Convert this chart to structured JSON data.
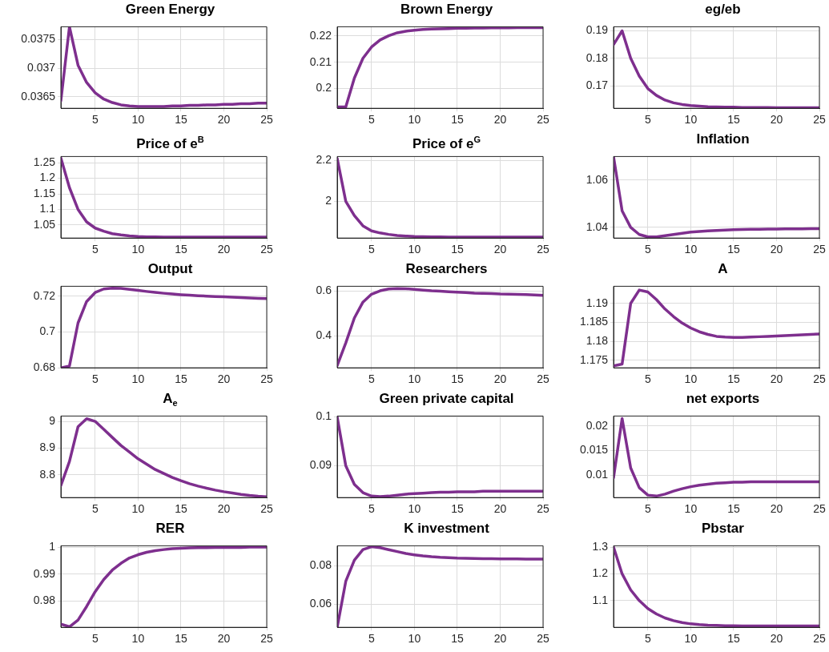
{
  "chart_data": [
    {
      "type": "line",
      "title": "Green Energy",
      "x": [
        1,
        2,
        3,
        4,
        5,
        6,
        7,
        8,
        9,
        10,
        11,
        12,
        13,
        14,
        15,
        16,
        17,
        18,
        19,
        20,
        21,
        22,
        23,
        24,
        25
      ],
      "series": [
        {
          "color": "#7e2f8e",
          "values": [
            0.03643,
            0.03772,
            0.03705,
            0.03675,
            0.03657,
            0.03646,
            0.0364,
            0.03636,
            0.03634,
            0.03633,
            0.03633,
            0.03633,
            0.03633,
            0.03634,
            0.03634,
            0.03635,
            0.03635,
            0.03636,
            0.03636,
            0.03637,
            0.03637,
            0.03638,
            0.03638,
            0.03639,
            0.03639
          ]
        }
      ],
      "xlim": [
        1,
        25
      ],
      "xticks": [
        5,
        10,
        15,
        20,
        25
      ],
      "ylim": [
        0.0363,
        0.03772
      ],
      "yticks": [
        0.0365,
        0.037,
        0.0375
      ],
      "grid": true,
      "legend": false,
      "marker": "none",
      "line_style": "solid"
    },
    {
      "type": "line",
      "title": "Brown Energy",
      "x": [
        1,
        2,
        3,
        4,
        5,
        6,
        7,
        8,
        9,
        10,
        11,
        12,
        13,
        14,
        15,
        16,
        17,
        18,
        19,
        20,
        21,
        22,
        23,
        24,
        25
      ],
      "series": [
        {
          "color": "#7e2f8e",
          "values": [
            0.193,
            0.193,
            0.204,
            0.2115,
            0.2158,
            0.2185,
            0.2201,
            0.2212,
            0.2218,
            0.2222,
            0.2225,
            0.2226,
            0.2227,
            0.2228,
            0.2229,
            0.2229,
            0.223,
            0.223,
            0.2231,
            0.2231,
            0.2231,
            0.2232,
            0.2232,
            0.2232,
            0.2232
          ]
        }
      ],
      "xlim": [
        1,
        25
      ],
      "xticks": [
        5,
        10,
        15,
        20,
        25
      ],
      "ylim": [
        0.1925,
        0.2235
      ],
      "yticks": [
        0.2,
        0.21,
        0.22
      ],
      "grid": true,
      "legend": false,
      "marker": "none",
      "line_style": "solid"
    },
    {
      "type": "line",
      "title": "eg/eb",
      "x": [
        1,
        2,
        3,
        4,
        5,
        6,
        7,
        8,
        9,
        10,
        11,
        12,
        13,
        14,
        15,
        16,
        17,
        18,
        19,
        20,
        21,
        22,
        23,
        24,
        25
      ],
      "series": [
        {
          "color": "#7e2f8e",
          "values": [
            0.185,
            0.19,
            0.18,
            0.1735,
            0.169,
            0.1665,
            0.1648,
            0.1638,
            0.1632,
            0.1628,
            0.1626,
            0.1624,
            0.1623,
            0.1622,
            0.1622,
            0.1621,
            0.1621,
            0.1621,
            0.1621,
            0.162,
            0.162,
            0.162,
            0.162,
            0.162,
            0.162
          ]
        }
      ],
      "xlim": [
        1,
        25
      ],
      "xticks": [
        5,
        10,
        15,
        20,
        25
      ],
      "ylim": [
        0.1618,
        0.1915
      ],
      "yticks": [
        0.17,
        0.18,
        0.19
      ],
      "grid": true,
      "legend": false,
      "marker": "none",
      "line_style": "solid"
    },
    {
      "type": "line",
      "title": "Price of e$^{B}$",
      "x": [
        1,
        2,
        3,
        4,
        5,
        6,
        7,
        8,
        9,
        10,
        11,
        12,
        13,
        14,
        15,
        16,
        17,
        18,
        19,
        20,
        21,
        22,
        23,
        24,
        25
      ],
      "series": [
        {
          "color": "#7e2f8e",
          "values": [
            1.265,
            1.17,
            1.1,
            1.06,
            1.04,
            1.03,
            1.022,
            1.018,
            1.015,
            1.013,
            1.012,
            1.012,
            1.011,
            1.011,
            1.011,
            1.011,
            1.011,
            1.011,
            1.011,
            1.011,
            1.011,
            1.011,
            1.011,
            1.011,
            1.011
          ]
        }
      ],
      "xlim": [
        1,
        25
      ],
      "xticks": [
        5,
        10,
        15,
        20,
        25
      ],
      "ylim": [
        1.008,
        1.27
      ],
      "yticks": [
        1.05,
        1.1,
        1.15,
        1.2,
        1.25
      ],
      "grid": true,
      "legend": false,
      "marker": "none",
      "line_style": "solid"
    },
    {
      "type": "line",
      "title": "Price of e$^{G}$",
      "x": [
        1,
        2,
        3,
        4,
        5,
        6,
        7,
        8,
        9,
        10,
        11,
        12,
        13,
        14,
        15,
        16,
        17,
        18,
        19,
        20,
        21,
        22,
        23,
        24,
        25
      ],
      "series": [
        {
          "color": "#7e2f8e",
          "values": [
            2.21,
            2.0,
            1.93,
            1.88,
            1.855,
            1.845,
            1.838,
            1.833,
            1.83,
            1.828,
            1.827,
            1.826,
            1.826,
            1.825,
            1.825,
            1.825,
            1.825,
            1.825,
            1.825,
            1.825,
            1.825,
            1.825,
            1.825,
            1.825,
            1.825
          ]
        }
      ],
      "xlim": [
        1,
        25
      ],
      "xticks": [
        5,
        10,
        15,
        20,
        25
      ],
      "ylim": [
        1.82,
        2.22
      ],
      "yticks": [
        2,
        2.2
      ],
      "grid": true,
      "legend": false,
      "marker": "none",
      "line_style": "solid"
    },
    {
      "type": "line",
      "title": "Inflation",
      "x": [
        1,
        2,
        3,
        4,
        5,
        6,
        7,
        8,
        9,
        10,
        11,
        12,
        13,
        14,
        15,
        16,
        17,
        18,
        19,
        20,
        21,
        22,
        23,
        24,
        25
      ],
      "series": [
        {
          "color": "#7e2f8e",
          "values": [
            1.07,
            1.047,
            1.04,
            1.037,
            1.036,
            1.036,
            1.0365,
            1.037,
            1.0375,
            1.038,
            1.0383,
            1.0385,
            1.0387,
            1.0389,
            1.039,
            1.0391,
            1.0392,
            1.0392,
            1.0393,
            1.0393,
            1.0394,
            1.0394,
            1.0394,
            1.0395,
            1.0395
          ]
        }
      ],
      "xlim": [
        1,
        25
      ],
      "xticks": [
        5,
        10,
        15,
        20,
        25
      ],
      "ylim": [
        1.0355,
        1.07
      ],
      "yticks": [
        1.04,
        1.06
      ],
      "grid": true,
      "legend": false,
      "marker": "none",
      "line_style": "solid"
    },
    {
      "type": "line",
      "title": "Output",
      "x": [
        1,
        2,
        3,
        4,
        5,
        6,
        7,
        8,
        9,
        10,
        11,
        12,
        13,
        14,
        15,
        16,
        17,
        18,
        19,
        20,
        21,
        22,
        23,
        24,
        25
      ],
      "series": [
        {
          "color": "#7e2f8e",
          "values": [
            0.68,
            0.681,
            0.705,
            0.717,
            0.722,
            0.724,
            0.7245,
            0.7243,
            0.7238,
            0.7232,
            0.7226,
            0.7221,
            0.7216,
            0.7212,
            0.7208,
            0.7205,
            0.7202,
            0.72,
            0.7198,
            0.7196,
            0.7194,
            0.7192,
            0.719,
            0.7188,
            0.7186
          ]
        }
      ],
      "xlim": [
        1,
        25
      ],
      "xticks": [
        5,
        10,
        15,
        20,
        25
      ],
      "ylim": [
        0.68,
        0.7255
      ],
      "yticks": [
        0.68,
        0.7,
        0.72
      ],
      "grid": true,
      "legend": false,
      "marker": "none",
      "line_style": "solid"
    },
    {
      "type": "line",
      "title": "Researchers",
      "x": [
        1,
        2,
        3,
        4,
        5,
        6,
        7,
        8,
        9,
        10,
        11,
        12,
        13,
        14,
        15,
        16,
        17,
        18,
        19,
        20,
        21,
        22,
        23,
        24,
        25
      ],
      "series": [
        {
          "color": "#7e2f8e",
          "values": [
            0.27,
            0.37,
            0.48,
            0.55,
            0.585,
            0.6,
            0.608,
            0.61,
            0.609,
            0.606,
            0.603,
            0.6,
            0.598,
            0.596,
            0.594,
            0.592,
            0.59,
            0.589,
            0.588,
            0.586,
            0.585,
            0.584,
            0.583,
            0.582,
            0.58
          ]
        }
      ],
      "xlim": [
        1,
        25
      ],
      "xticks": [
        5,
        10,
        15,
        20,
        25
      ],
      "ylim": [
        0.26,
        0.62
      ],
      "yticks": [
        0.4,
        0.6
      ],
      "grid": true,
      "legend": false,
      "marker": "none",
      "line_style": "solid"
    },
    {
      "type": "line",
      "title": "A",
      "x": [
        1,
        2,
        3,
        4,
        5,
        6,
        7,
        8,
        9,
        10,
        11,
        12,
        13,
        14,
        15,
        16,
        17,
        18,
        19,
        20,
        21,
        22,
        23,
        24,
        25
      ],
      "series": [
        {
          "color": "#7e2f8e",
          "values": [
            1.1735,
            1.174,
            1.19,
            1.1935,
            1.193,
            1.191,
            1.1885,
            1.1865,
            1.1848,
            1.1835,
            1.1825,
            1.1818,
            1.1813,
            1.1811,
            1.181,
            1.181,
            1.1811,
            1.1812,
            1.1813,
            1.1814,
            1.1815,
            1.1816,
            1.1817,
            1.1818,
            1.1819
          ]
        }
      ],
      "xlim": [
        1,
        25
      ],
      "xticks": [
        5,
        10,
        15,
        20,
        25
      ],
      "ylim": [
        1.173,
        1.1945
      ],
      "yticks": [
        1.175,
        1.18,
        1.185,
        1.19
      ],
      "grid": true,
      "legend": false,
      "marker": "none",
      "line_style": "solid"
    },
    {
      "type": "line",
      "title": "A$_{e}$",
      "x": [
        1,
        2,
        3,
        4,
        5,
        6,
        7,
        8,
        9,
        10,
        11,
        12,
        13,
        14,
        15,
        16,
        17,
        18,
        19,
        20,
        21,
        22,
        23,
        24,
        25
      ],
      "series": [
        {
          "color": "#7e2f8e",
          "values": [
            8.76,
            8.85,
            8.98,
            9.01,
            9.0,
            8.97,
            8.94,
            8.91,
            8.885,
            8.86,
            8.84,
            8.82,
            8.805,
            8.79,
            8.778,
            8.767,
            8.758,
            8.75,
            8.743,
            8.737,
            8.732,
            8.727,
            8.723,
            8.72,
            8.718
          ]
        }
      ],
      "xlim": [
        1,
        25
      ],
      "xticks": [
        5,
        10,
        15,
        20,
        25
      ],
      "ylim": [
        8.715,
        9.02
      ],
      "yticks": [
        8.8,
        8.9,
        9
      ],
      "grid": true,
      "legend": false,
      "marker": "none",
      "line_style": "solid"
    },
    {
      "type": "line",
      "title": "Green private capital",
      "x": [
        1,
        2,
        3,
        4,
        5,
        6,
        7,
        8,
        9,
        10,
        11,
        12,
        13,
        14,
        15,
        16,
        17,
        18,
        19,
        20,
        21,
        22,
        23,
        24,
        25
      ],
      "series": [
        {
          "color": "#7e2f8e",
          "values": [
            0.1,
            0.09,
            0.0862,
            0.0845,
            0.0838,
            0.0837,
            0.0838,
            0.084,
            0.0842,
            0.0843,
            0.0844,
            0.0845,
            0.0846,
            0.0846,
            0.0847,
            0.0847,
            0.0847,
            0.0848,
            0.0848,
            0.0848,
            0.0848,
            0.0848,
            0.0848,
            0.0848,
            0.0848
          ]
        }
      ],
      "xlim": [
        1,
        25
      ],
      "xticks": [
        5,
        10,
        15,
        20,
        25
      ],
      "ylim": [
        0.0835,
        0.1002
      ],
      "yticks": [
        0.09,
        0.1
      ],
      "grid": true,
      "legend": false,
      "marker": "none",
      "line_style": "solid"
    },
    {
      "type": "line",
      "title": "net exports",
      "x": [
        1,
        2,
        3,
        4,
        5,
        6,
        7,
        8,
        9,
        10,
        11,
        12,
        13,
        14,
        15,
        16,
        17,
        18,
        19,
        20,
        21,
        22,
        23,
        24,
        25
      ],
      "series": [
        {
          "color": "#7e2f8e",
          "values": [
            0.0095,
            0.0215,
            0.0115,
            0.0075,
            0.006,
            0.0058,
            0.0062,
            0.0068,
            0.0073,
            0.0077,
            0.008,
            0.0082,
            0.0084,
            0.0085,
            0.0086,
            0.0086,
            0.0087,
            0.0087,
            0.0087,
            0.0087,
            0.0087,
            0.0087,
            0.0087,
            0.0087,
            0.0087
          ]
        }
      ],
      "xlim": [
        1,
        25
      ],
      "xticks": [
        5,
        10,
        15,
        20,
        25
      ],
      "ylim": [
        0.0055,
        0.022
      ],
      "yticks": [
        0.01,
        0.015,
        0.02
      ],
      "grid": true,
      "legend": false,
      "marker": "none",
      "line_style": "solid"
    },
    {
      "type": "line",
      "title": "RER",
      "x": [
        1,
        2,
        3,
        4,
        5,
        6,
        7,
        8,
        9,
        10,
        11,
        12,
        13,
        14,
        15,
        16,
        17,
        18,
        19,
        20,
        21,
        22,
        23,
        24,
        25
      ],
      "series": [
        {
          "color": "#7e2f8e",
          "values": [
            0.9715,
            0.9705,
            0.973,
            0.978,
            0.9835,
            0.988,
            0.9915,
            0.994,
            0.996,
            0.9972,
            0.9981,
            0.9987,
            0.9991,
            0.9994,
            0.9996,
            0.9997,
            0.9998,
            0.9998,
            0.9999,
            0.9999,
            0.9999,
            0.9999,
            1.0,
            1.0,
            1.0
          ]
        }
      ],
      "xlim": [
        1,
        25
      ],
      "xticks": [
        5,
        10,
        15,
        20,
        25
      ],
      "ylim": [
        0.9703,
        1.0005
      ],
      "yticks": [
        0.98,
        0.99,
        1
      ],
      "grid": true,
      "legend": false,
      "marker": "none",
      "line_style": "solid"
    },
    {
      "type": "line",
      "title": "K investment",
      "x": [
        1,
        2,
        3,
        4,
        5,
        6,
        7,
        8,
        9,
        10,
        11,
        12,
        13,
        14,
        15,
        16,
        17,
        18,
        19,
        20,
        21,
        22,
        23,
        24,
        25
      ],
      "series": [
        {
          "color": "#7e2f8e",
          "values": [
            0.048,
            0.072,
            0.083,
            0.0885,
            0.09,
            0.0895,
            0.0885,
            0.0875,
            0.0865,
            0.0858,
            0.0852,
            0.0848,
            0.0845,
            0.0843,
            0.0841,
            0.084,
            0.0839,
            0.0838,
            0.0838,
            0.0837,
            0.0837,
            0.0837,
            0.0836,
            0.0836,
            0.0836
          ]
        }
      ],
      "xlim": [
        1,
        25
      ],
      "xticks": [
        5,
        10,
        15,
        20,
        25
      ],
      "ylim": [
        0.048,
        0.0905
      ],
      "yticks": [
        0.06,
        0.08
      ],
      "grid": true,
      "legend": false,
      "marker": "none",
      "line_style": "solid"
    },
    {
      "type": "line",
      "title": "Pbstar",
      "x": [
        1,
        2,
        3,
        4,
        5,
        6,
        7,
        8,
        9,
        10,
        11,
        12,
        13,
        14,
        15,
        16,
        17,
        18,
        19,
        20,
        21,
        22,
        23,
        24,
        25
      ],
      "series": [
        {
          "color": "#7e2f8e",
          "values": [
            1.3,
            1.2,
            1.14,
            1.1,
            1.07,
            1.05,
            1.035,
            1.025,
            1.018,
            1.013,
            1.01,
            1.008,
            1.007,
            1.006,
            1.006,
            1.005,
            1.005,
            1.005,
            1.005,
            1.005,
            1.005,
            1.005,
            1.005,
            1.005,
            1.005
          ]
        }
      ],
      "xlim": [
        1,
        25
      ],
      "xticks": [
        5,
        10,
        15,
        20,
        25
      ],
      "ylim": [
        1.0,
        1.305
      ],
      "yticks": [
        1.1,
        1.2,
        1.3
      ],
      "grid": true,
      "legend": false,
      "marker": "none",
      "line_style": "solid"
    }
  ]
}
